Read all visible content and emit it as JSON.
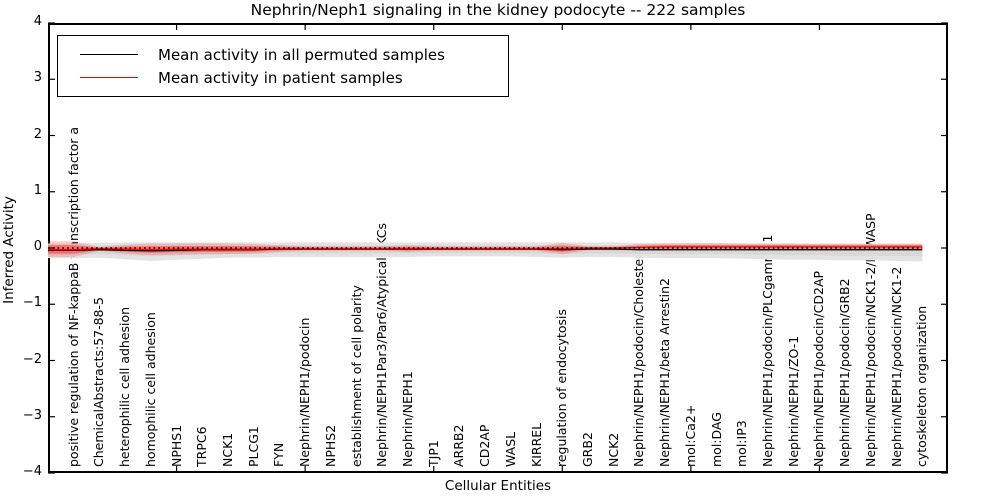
{
  "title": "Nephrin/Neph1 signaling in the kidney podocyte -- 222 samples",
  "legend": {
    "entries": [
      {
        "label": "Mean activity in all permuted samples",
        "color": "#000000"
      },
      {
        "label": "Mean activity in patient samples",
        "color": "#ff0000"
      }
    ]
  },
  "chart_data": {
    "type": "line",
    "title": "Nephrin/Neph1 signaling in the kidney podocyte -- 222 samples",
    "xlabel": "Cellular Entities",
    "ylabel": "Inferred Activity",
    "ylim": [
      -4,
      4
    ],
    "yticks": [
      "4",
      "3",
      "2",
      "1",
      "0",
      "−1",
      "−2",
      "−3",
      "−4"
    ],
    "ytick_values": [
      4,
      3,
      2,
      1,
      0,
      -1,
      -2,
      -3,
      -4
    ],
    "x_major_ticks": [
      5,
      10,
      15,
      20,
      25,
      30
    ],
    "grid": false,
    "legend_position": "upper left",
    "zero_line": {
      "style": "dotted",
      "color": "#000000",
      "y": 0
    },
    "categories": [
      "positive regulation of NF-kappaB transcription factor a",
      "ChemicalAbstracts:57-88-5",
      "heterophilic cell adhesion",
      "homophilic cell adhesion",
      "NPHS1",
      "TRPC6",
      "NCK1",
      "PLCG1",
      "FYN",
      "Nephrin/NEPH1/podocin",
      "NPHS2",
      "establishment of cell polarity",
      "Nephrin/NEPH1Par3/Par6/Atypical PKCs",
      "Nephrin/NEPH1",
      "TJP1",
      "ARRB2",
      "CD2AP",
      "WASL",
      "KIRREL",
      "regulation of endocytosis",
      "GRB2",
      "NCK2",
      "Nephrin/NEPH1/podocin/Cholesterol",
      "Nephrin/NEPH1/beta Arrestin2",
      "mol:Ca2+",
      "mol:DAG",
      "mol:IP3",
      "Nephrin/NEPH1/podocin/PLCgamma1",
      "Nephrin/NEPH1/ZO-1",
      "Nephrin/NEPH1/podocin/CD2AP",
      "Nephrin/NEPH1/podocin/GRB2",
      "Nephrin/NEPH1/podocin/NCK1-2/N-WASP",
      "Nephrin/NEPH1/podocin/NCK1-2",
      "cytoskeleton organization"
    ],
    "series": [
      {
        "name": "Mean activity in all permuted samples",
        "color": "#000000",
        "band_color": "#d8d8d8",
        "values": [
          -0.04,
          -0.03,
          -0.04,
          -0.05,
          -0.04,
          -0.03,
          -0.03,
          -0.03,
          -0.02,
          -0.02,
          -0.02,
          -0.02,
          -0.02,
          -0.02,
          -0.02,
          -0.02,
          -0.02,
          -0.02,
          -0.02,
          -0.03,
          -0.02,
          -0.02,
          -0.03,
          -0.03,
          -0.03,
          -0.03,
          -0.03,
          -0.03,
          -0.03,
          -0.03,
          -0.03,
          -0.03,
          -0.03,
          -0.03
        ],
        "band_upper": [
          0.08,
          0.09,
          0.1,
          0.1,
          0.1,
          0.1,
          0.1,
          0.1,
          0.1,
          0.1,
          0.1,
          0.1,
          0.1,
          0.1,
          0.1,
          0.1,
          0.1,
          0.1,
          0.1,
          0.1,
          0.1,
          0.1,
          0.09,
          0.09,
          0.09,
          0.09,
          0.08,
          0.08,
          0.08,
          0.07,
          0.07,
          0.07,
          0.07,
          0.07
        ],
        "band_lower": [
          -0.18,
          -0.17,
          -0.2,
          -0.23,
          -0.21,
          -0.19,
          -0.17,
          -0.17,
          -0.16,
          -0.16,
          -0.16,
          -0.16,
          -0.16,
          -0.16,
          -0.15,
          -0.15,
          -0.15,
          -0.15,
          -0.16,
          -0.17,
          -0.16,
          -0.16,
          -0.17,
          -0.18,
          -0.18,
          -0.18,
          -0.19,
          -0.2,
          -0.21,
          -0.21,
          -0.22,
          -0.22,
          -0.23,
          -0.24
        ]
      },
      {
        "name": "Mean activity in patient samples",
        "color": "#ff0000",
        "band_color": "#f08080",
        "values": [
          -0.03,
          -0.01,
          -0.02,
          -0.03,
          -0.02,
          -0.02,
          -0.02,
          -0.02,
          -0.01,
          -0.01,
          -0.01,
          -0.01,
          -0.01,
          -0.01,
          -0.01,
          -0.01,
          -0.01,
          -0.01,
          -0.01,
          -0.01,
          0.0,
          0.0,
          0.01,
          0.02,
          0.02,
          0.02,
          0.02,
          0.02,
          0.02,
          0.02,
          0.02,
          0.02,
          0.02,
          0.02
        ],
        "band_upper": [
          0.12,
          0.02,
          0.06,
          0.08,
          0.08,
          0.08,
          0.08,
          0.07,
          0.05,
          0.03,
          0.03,
          0.03,
          0.03,
          0.05,
          0.03,
          0.03,
          0.03,
          0.03,
          0.03,
          0.09,
          0.03,
          0.03,
          0.07,
          0.08,
          0.08,
          0.08,
          0.08,
          0.08,
          0.08,
          0.08,
          0.08,
          0.08,
          0.08,
          0.08
        ],
        "band_lower": [
          -0.16,
          -0.05,
          -0.1,
          -0.13,
          -0.12,
          -0.11,
          -0.11,
          -0.1,
          -0.07,
          -0.05,
          -0.05,
          -0.05,
          -0.05,
          -0.07,
          -0.05,
          -0.05,
          -0.05,
          -0.05,
          -0.05,
          -0.11,
          -0.04,
          -0.04,
          -0.04,
          -0.04,
          -0.04,
          -0.04,
          -0.04,
          -0.04,
          -0.04,
          -0.04,
          -0.04,
          -0.04,
          -0.04,
          -0.04
        ]
      }
    ]
  }
}
